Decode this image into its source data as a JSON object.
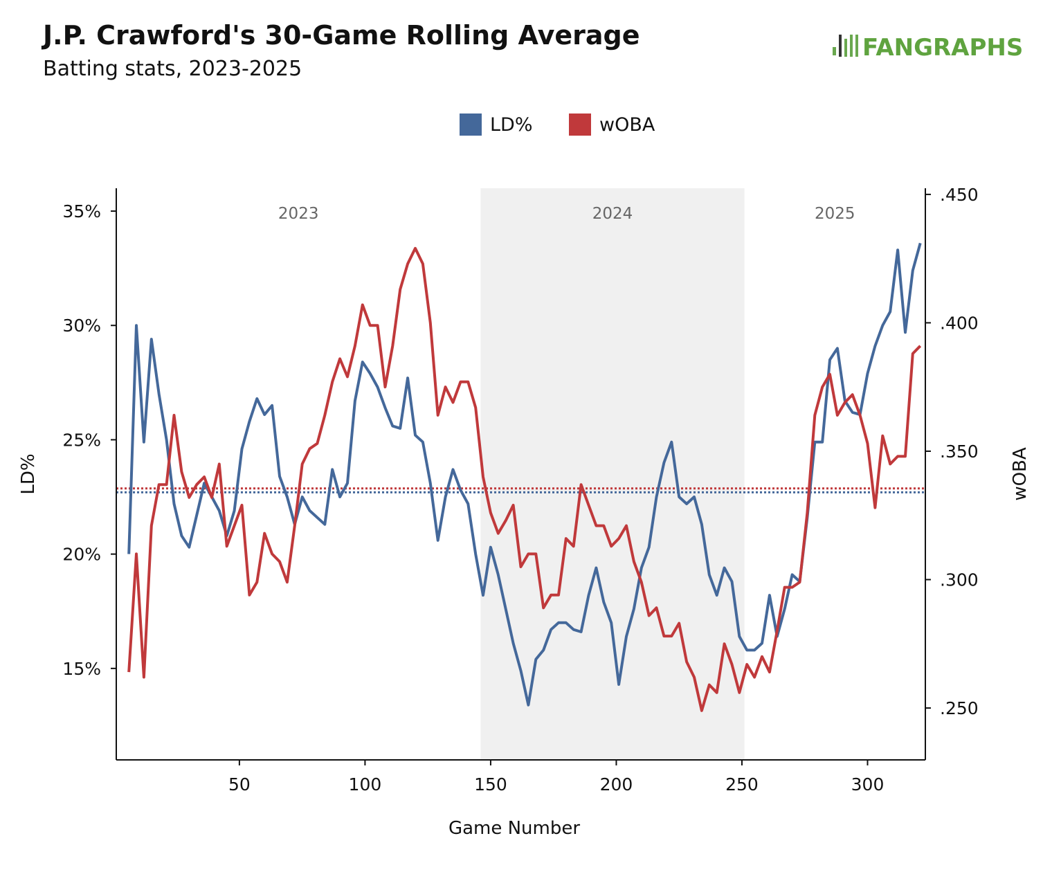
{
  "chart_data": {
    "type": "line",
    "title": "J.P. Crawford's 30-Game Rolling Average",
    "subtitle": "Batting stats, 2023-2025",
    "logo": "FANGRAPHS",
    "x_label": "Game Number",
    "y_label": "LD%",
    "y2_label": "wOBA",
    "xlim": [
      1,
      323
    ],
    "xticks": [
      50,
      100,
      150,
      200,
      250,
      300
    ],
    "ylim": [
      11,
      36
    ],
    "yticks": [
      {
        "value": 15,
        "label": "15%"
      },
      {
        "value": 20,
        "label": "20%"
      },
      {
        "value": 25,
        "label": "25%"
      },
      {
        "value": 30,
        "label": "30%"
      },
      {
        "value": 35,
        "label": "35%"
      }
    ],
    "y2lim": [
      0.2298,
      0.4524
    ],
    "y2ticks": [
      {
        "value": 0.25,
        "label": ".250"
      },
      {
        "value": 0.3,
        "label": ".300"
      },
      {
        "value": 0.35,
        "label": ".350"
      },
      {
        "value": 0.4,
        "label": ".400"
      },
      {
        "value": 0.45,
        "label": ".450"
      }
    ],
    "seasons": [
      {
        "label": "2023",
        "start": 1,
        "end": 146,
        "shaded": false
      },
      {
        "label": "2024",
        "start": 146,
        "end": 251,
        "shaded": true
      },
      {
        "label": "2025",
        "start": 251,
        "end": 323,
        "shaded": false
      }
    ],
    "x": [
      6,
      9,
      12,
      15,
      18,
      21,
      24,
      27,
      30,
      33,
      36,
      39,
      42,
      45,
      48,
      51,
      54,
      57,
      60,
      63,
      66,
      69,
      72,
      75,
      78,
      81,
      84,
      87,
      90,
      93,
      96,
      99,
      102,
      105,
      108,
      111,
      114,
      117,
      120,
      123,
      126,
      129,
      132,
      135,
      138,
      141,
      144,
      147,
      150,
      153,
      156,
      159,
      162,
      165,
      168,
      171,
      174,
      177,
      180,
      183,
      186,
      189,
      192,
      195,
      198,
      201,
      204,
      207,
      210,
      213,
      216,
      219,
      222,
      225,
      228,
      231,
      234,
      237,
      240,
      243,
      246,
      249,
      252,
      255,
      258,
      261,
      264,
      267,
      270,
      273,
      276,
      279,
      282,
      285,
      288,
      291,
      294,
      297,
      300,
      303,
      306,
      309,
      312,
      315,
      318,
      321
    ],
    "series": [
      {
        "name": "LD%",
        "color": "#44689a",
        "axis": "y",
        "mean": 22.7,
        "values": [
          20.0,
          30.0,
          24.9,
          29.4,
          27.0,
          25.0,
          22.2,
          20.8,
          20.3,
          21.7,
          23.1,
          22.5,
          21.9,
          20.8,
          21.9,
          24.6,
          25.8,
          26.8,
          26.1,
          26.5,
          23.4,
          22.5,
          21.3,
          22.5,
          21.9,
          21.6,
          21.3,
          23.7,
          22.5,
          23.1,
          26.7,
          28.4,
          27.9,
          27.3,
          26.4,
          25.6,
          25.5,
          27.7,
          25.2,
          24.9,
          23.1,
          20.6,
          22.5,
          23.7,
          22.8,
          22.2,
          20.0,
          18.2,
          20.3,
          19.1,
          17.6,
          16.1,
          14.9,
          13.4,
          15.4,
          15.8,
          16.7,
          17.0,
          17.0,
          16.7,
          16.6,
          18.2,
          19.4,
          17.9,
          17.0,
          14.3,
          16.4,
          17.6,
          19.4,
          20.3,
          22.5,
          24.0,
          24.9,
          22.5,
          22.2,
          22.5,
          21.3,
          19.1,
          18.2,
          19.4,
          18.8,
          16.4,
          15.8,
          15.8,
          16.1,
          18.2,
          16.4,
          17.6,
          19.1,
          18.8,
          21.6,
          24.9,
          24.9,
          28.5,
          29.0,
          26.7,
          26.2,
          26.1,
          27.9,
          29.1,
          30.0,
          30.6,
          33.3,
          29.7,
          32.4,
          33.6
        ]
      },
      {
        "name": "wOBA",
        "color": "#c0393b",
        "axis": "y2",
        "mean": 0.3355,
        "values": [
          0.264,
          0.31,
          0.262,
          0.321,
          0.337,
          0.337,
          0.364,
          0.342,
          0.332,
          0.337,
          0.34,
          0.332,
          0.345,
          0.313,
          0.321,
          0.329,
          0.294,
          0.299,
          0.318,
          0.31,
          0.307,
          0.299,
          0.321,
          0.345,
          0.351,
          0.353,
          0.364,
          0.377,
          0.386,
          0.379,
          0.391,
          0.407,
          0.399,
          0.399,
          0.375,
          0.391,
          0.413,
          0.423,
          0.429,
          0.423,
          0.4,
          0.364,
          0.375,
          0.369,
          0.377,
          0.377,
          0.367,
          0.34,
          0.326,
          0.318,
          0.323,
          0.329,
          0.305,
          0.31,
          0.31,
          0.289,
          0.294,
          0.294,
          0.316,
          0.313,
          0.337,
          0.329,
          0.321,
          0.321,
          0.313,
          0.316,
          0.321,
          0.307,
          0.299,
          0.286,
          0.289,
          0.278,
          0.278,
          0.283,
          0.268,
          0.262,
          0.249,
          0.259,
          0.256,
          0.275,
          0.267,
          0.256,
          0.267,
          0.262,
          0.27,
          0.264,
          0.28,
          0.297,
          0.297,
          0.299,
          0.326,
          0.364,
          0.375,
          0.38,
          0.364,
          0.369,
          0.372,
          0.364,
          0.353,
          0.328,
          0.356,
          0.345,
          0.348,
          0.348,
          0.388,
          0.391
        ]
      }
    ]
  }
}
